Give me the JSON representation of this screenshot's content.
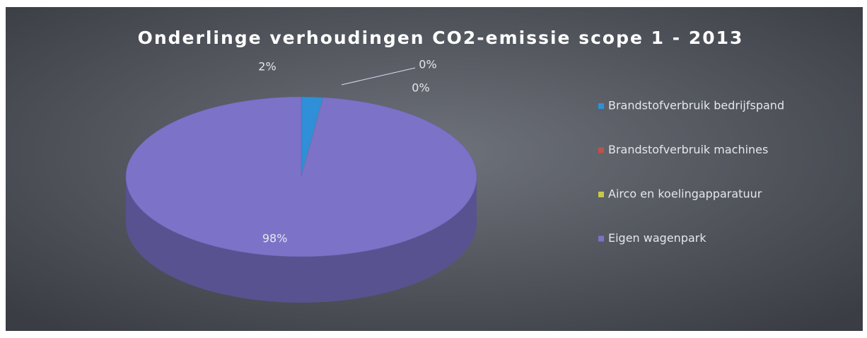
{
  "chart_data": {
    "type": "pie3d",
    "title": "Onderlinge verhoudingen CO2-emissie scope 1 - 2013",
    "categories": [
      "Brandstofverbruik bedrijfspand",
      "Brandstofverbruik machines",
      "Airco en koelingapparatuur",
      "Eigen wagenpark"
    ],
    "values": [
      2,
      0,
      0,
      98
    ],
    "value_labels": [
      "2%",
      "0%",
      "0%",
      "98%"
    ],
    "colors": [
      "#2f8fd8",
      "#c0504d",
      "#c8c84a",
      "#7c72c8"
    ],
    "legend": "right"
  }
}
